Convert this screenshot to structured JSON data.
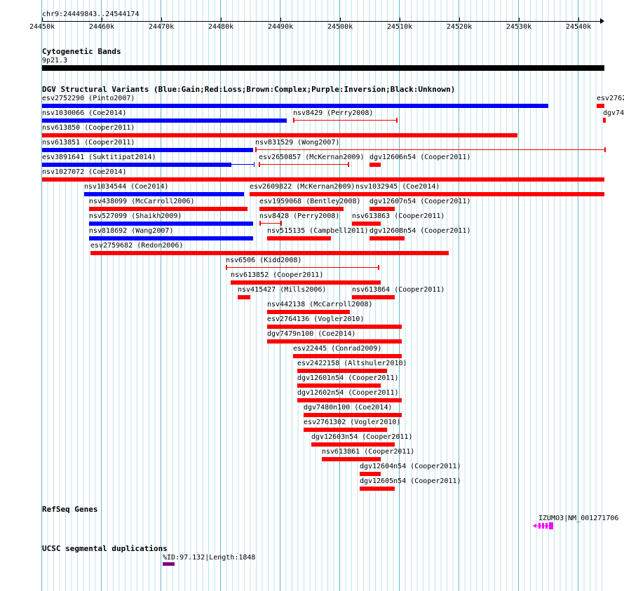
{
  "header": {
    "range": "chr9:24449843..24544174"
  },
  "ruler": {
    "ticks": [
      "24450k",
      "24460k",
      "24470k",
      "24480k",
      "24490k",
      "24500k",
      "24510k",
      "24520k",
      "24530k",
      "24540k"
    ]
  },
  "tracks": {
    "cytoband": {
      "title": "Cytogenetic Bands",
      "band": "9p21.3"
    },
    "dgv": {
      "title": "DGV Structural Variants (Blue:Gain;Red:Loss;Brown:Complex;Purple:Inversion;Black:Unknown)",
      "colors": {
        "gain": "#0000ff",
        "loss": "#ff0000"
      },
      "features": [
        {
          "label": "esv2752290 (Pinto2007)",
          "type": "gain"
        },
        {
          "label": "esv2762",
          "type": "loss"
        },
        {
          "label": "nsv1030066 (Coe2014)",
          "type": "gain"
        },
        {
          "label": "nsv8429 (Perry2008)",
          "type": "loss"
        },
        {
          "label": "dgv74",
          "type": "loss"
        },
        {
          "label": "nsv613850 (Cooper2011)",
          "type": "loss"
        },
        {
          "label": "nsv613851 (Cooper2011)",
          "type": "gain"
        },
        {
          "label": "nsv831529 (Wong2007)",
          "type": "loss"
        },
        {
          "label": "esv3891641 (Suktitipat2014)",
          "type": "gain"
        },
        {
          "label": "esv2650857 (McKernan2009)",
          "type": "loss"
        },
        {
          "label": "dgv12606n54 (Cooper2011)",
          "type": "loss"
        },
        {
          "label": "nsv1027072 (Coe2014)",
          "type": "loss"
        },
        {
          "label": "nsv1034544 (Coe2014)",
          "type": "gain"
        },
        {
          "label": "esv2609822 (McKernan2009)",
          "type": "loss"
        },
        {
          "label": "nsv1032945 (Coe2014)",
          "type": "loss"
        },
        {
          "label": "nsv438099 (McCarroll2006)",
          "type": "loss"
        },
        {
          "label": "esv1959068 (Bentley2008)",
          "type": "loss"
        },
        {
          "label": "dgv12607n54 (Cooper2011)",
          "type": "loss"
        },
        {
          "label": "nsv527099 (Shaikh2009)",
          "type": "gain"
        },
        {
          "label": "nsv8428 (Perry2008)",
          "type": "loss"
        },
        {
          "label": "nsv613863 (Cooper2011)",
          "type": "loss"
        },
        {
          "label": "nsv818692 (Wang2007)",
          "type": "gain"
        },
        {
          "label": "nsv515135 (Campbell2011)",
          "type": "loss"
        },
        {
          "label": "dgv12608n54 (Cooper2011)",
          "type": "loss"
        },
        {
          "label": "esv2759682 (Redon2006)",
          "type": "loss"
        },
        {
          "label": "nsv6506 (Kidd2008)",
          "type": "loss"
        },
        {
          "label": "nsv613852 (Cooper2011)",
          "type": "loss"
        },
        {
          "label": "nsv415427 (Mills2006)",
          "type": "loss"
        },
        {
          "label": "nsv613864 (Cooper2011)",
          "type": "loss"
        },
        {
          "label": "nsv442138 (McCarroll2008)",
          "type": "loss"
        },
        {
          "label": "esv2764136 (Vogler2010)",
          "type": "loss"
        },
        {
          "label": "dgv7479n100 (Coe2014)",
          "type": "loss"
        },
        {
          "label": "esv22445 (Conrad2009)",
          "type": "loss"
        },
        {
          "label": "esv2422158 (Altshuler2010)",
          "type": "loss"
        },
        {
          "label": "dgv12601n54 (Cooper2011)",
          "type": "loss"
        },
        {
          "label": "dgv12602n54 (Cooper2011)",
          "type": "loss"
        },
        {
          "label": "dgv7480n100 (Coe2014)",
          "type": "loss"
        },
        {
          "label": "esv2761302 (Vogler2010)",
          "type": "loss"
        },
        {
          "label": "dgv12603n54 (Cooper2011)",
          "type": "loss"
        },
        {
          "label": "nsv613861 (Cooper2011)",
          "type": "loss"
        },
        {
          "label": "dgv12604n54 (Cooper2011)",
          "type": "loss"
        },
        {
          "label": "dgv12605n54 (Cooper2011)",
          "type": "loss"
        }
      ]
    },
    "refseq": {
      "title": "RefSeq Genes",
      "gene_label": "IZUMO3|NM_001271706",
      "color": "#ff00ff"
    },
    "segdup": {
      "title": "UCSC segmental duplications",
      "label": "%ID:97.132|Length:1848",
      "color": "#800080"
    }
  }
}
